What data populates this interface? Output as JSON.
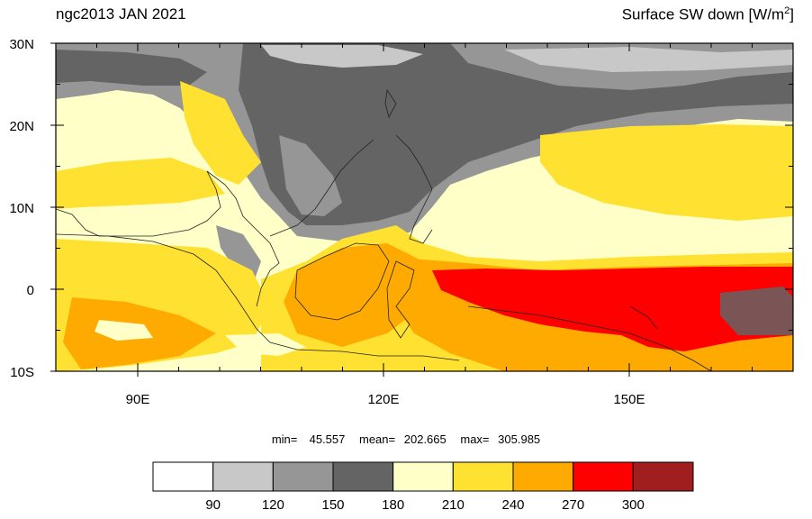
{
  "title_left": "ngc2013 JAN 2021",
  "title_right": {
    "text": "Surface SW down [W/m",
    "sup": "2",
    "close": "]"
  },
  "axes": {
    "lat_labels": [
      "30N",
      "20N",
      "10N",
      "0",
      "10S"
    ],
    "lat_values": [
      30,
      20,
      10,
      0,
      -10
    ],
    "lon_labels": [
      "90E",
      "120E",
      "150E"
    ],
    "lon_values": [
      90,
      120,
      150
    ],
    "lon_range": [
      80,
      170
    ],
    "lat_range": [
      -10,
      30
    ]
  },
  "stats": {
    "min_label": "min=",
    "min": "45.557",
    "mean_label": "mean=",
    "mean": "202.665",
    "max_label": "max=",
    "max": "305.985"
  },
  "colorbar": {
    "colors": [
      "#ffffff",
      "#c8c8c8",
      "#969696",
      "#646464",
      "#ffffc8",
      "#ffe132",
      "#ffaa00",
      "#ff0000",
      "#a01e1e"
    ],
    "labels": [
      "90",
      "120",
      "150",
      "180",
      "210",
      "240",
      "270",
      "300"
    ],
    "label_values": [
      90,
      120,
      150,
      180,
      210,
      240,
      270,
      300
    ]
  }
}
